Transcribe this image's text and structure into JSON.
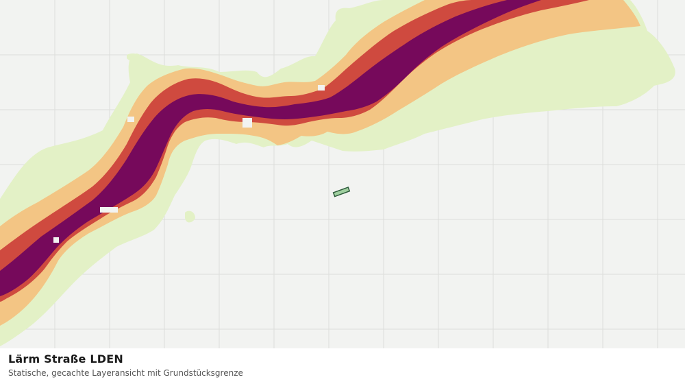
{
  "map": {
    "layer_title": "Lärm Straße LDEN",
    "layer_subtitle": "Statische, gecachte Layeransicht mit Grundstücksgrenze",
    "colors": {
      "background": "#f2f3f1",
      "grid": "#dcdedb",
      "noise_band_outer": "#e3f1c6",
      "noise_band_light": "#f3c584",
      "noise_band_medium": "#cf4a3f",
      "noise_band_core": "#76095b",
      "parcel_fill": "#9fcf9f",
      "parcel_stroke": "#2d5a3a"
    },
    "legend_bands": [
      "outer",
      "light",
      "medium",
      "core"
    ]
  }
}
